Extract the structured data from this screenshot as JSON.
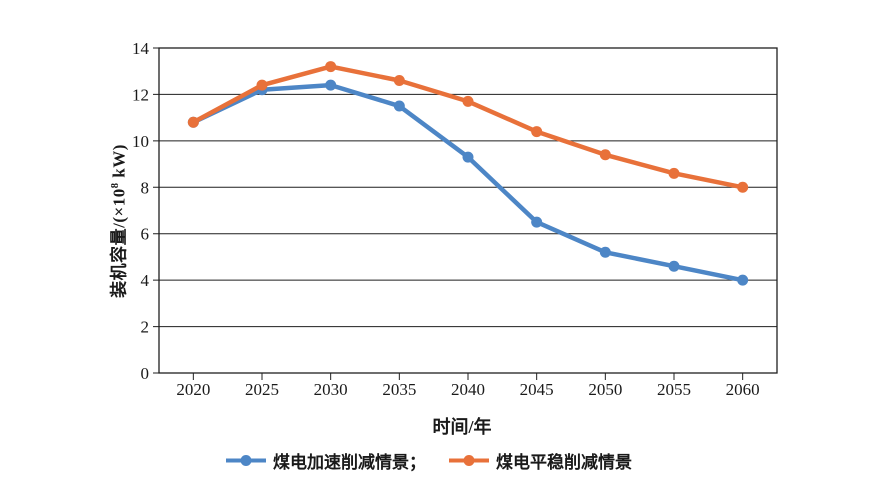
{
  "chart_data": {
    "type": "line",
    "title": "",
    "xlabel": "时间/年",
    "ylabel": "装机容量/(×10⁸ kW)",
    "categories": [
      "2020",
      "2025",
      "2030",
      "2035",
      "2040",
      "2045",
      "2050",
      "2055",
      "2060"
    ],
    "series": [
      {
        "name": "煤电加速削减情景",
        "color": "#4d86c6",
        "values": [
          10.8,
          12.2,
          12.4,
          11.5,
          9.3,
          6.5,
          5.2,
          4.6,
          4.0
        ]
      },
      {
        "name": "煤电平稳削减情景",
        "color": "#e8713a",
        "values": [
          10.8,
          12.4,
          13.2,
          12.6,
          11.7,
          10.4,
          9.4,
          8.6,
          8.0
        ]
      }
    ],
    "y_ticks": [
      0,
      2,
      4,
      6,
      8,
      10,
      12,
      14
    ],
    "ylim": [
      0,
      14
    ],
    "grid": "horizontal",
    "legend_position": "bottom"
  },
  "axes": {
    "x_title": "时间/年",
    "y_title_prefix": "装机容量/(×10",
    "y_title_sup": "8",
    "y_title_suffix": " kW)"
  },
  "legend": {
    "items": [
      {
        "label": "煤电加速削减情景；",
        "color": "#4d86c6"
      },
      {
        "label": "煤电平稳削减情景",
        "color": "#e8713a"
      }
    ]
  },
  "style": {
    "axis_color": "#1f1f1f",
    "background": "#ffffff"
  }
}
